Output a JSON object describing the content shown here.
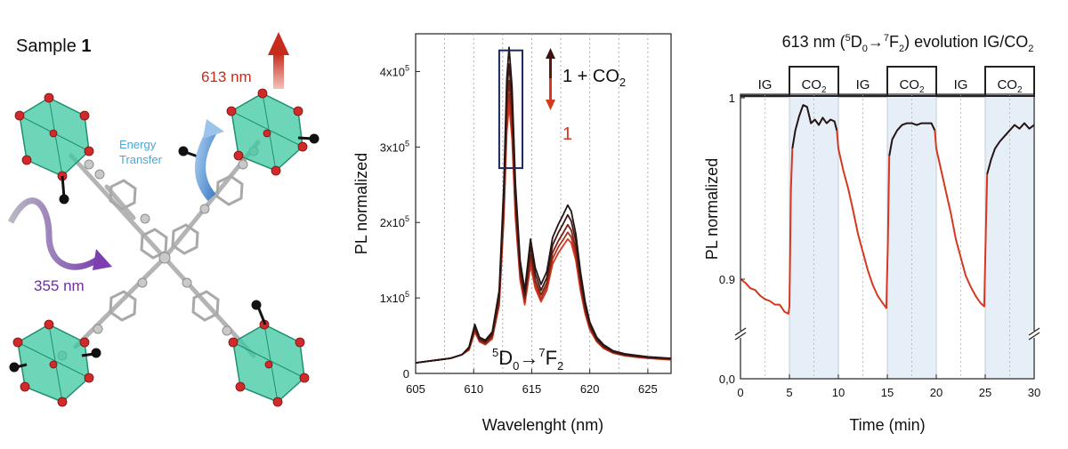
{
  "left_panel": {
    "sample_label": "Sample ",
    "sample_number": "1",
    "emission_label": "613 nm",
    "excitation_label": "355 nm",
    "energy_transfer_line1": "Energy",
    "energy_transfer_line2": "Transfer"
  },
  "chart_data": [
    {
      "type": "line",
      "title": "",
      "xlabel": "Wavelenght (nm)",
      "ylabel": "PL normalized",
      "xlim": [
        605,
        627
      ],
      "ylim": [
        0,
        450000
      ],
      "xticks": [
        605,
        610,
        615,
        620,
        625
      ],
      "yticks": [
        {
          "value": 0,
          "label": "0"
        },
        {
          "value": 100000,
          "label": "1x10",
          "exp": "5"
        },
        {
          "value": 200000,
          "label": "2x10",
          "exp": "5"
        },
        {
          "value": 300000,
          "label": "3x10",
          "exp": "5"
        },
        {
          "value": 400000,
          "label": "4x10",
          "exp": "5"
        }
      ],
      "grid_x": [
        607.5,
        610,
        612.5,
        615,
        617.5,
        620,
        622.5,
        625
      ],
      "legend": {
        "top_label": "1 + CO",
        "top_sub": "2",
        "bottom_label": "1"
      },
      "transition_label": {
        "main": "D",
        "pre_sup": "5",
        "sub1": "0",
        "arrow": "→",
        "sup2": "7",
        "main2": "F",
        "sub2": "2"
      },
      "highlight_box": {
        "x": [
          612.2,
          614.2
        ],
        "y": [
          272000,
          428000
        ]
      },
      "colors": {
        "red": "#d5381f",
        "dark": "#241414",
        "box": "#1b2a5a"
      },
      "series": [
        {
          "color": "#241414",
          "peak_scale": 1.0,
          "x": [
            605,
            606,
            607,
            608,
            609,
            609.6,
            610.1,
            610.5,
            611,
            611.6,
            612.2,
            612.6,
            612.85,
            613.05,
            613.3,
            613.6,
            614.0,
            614.4,
            614.9,
            615.3,
            615.8,
            616.3,
            616.8,
            617.3,
            617.7,
            618.1,
            618.4,
            618.8,
            619.2,
            619.6,
            620,
            620.6,
            621.2,
            622,
            623,
            624,
            625,
            626,
            627
          ],
          "y": [
            14000,
            16000,
            18000,
            20000,
            25000,
            35000,
            65000,
            48000,
            44000,
            55000,
            110000,
            250000,
            390000,
            432000,
            380000,
            250000,
            150000,
            110000,
            178000,
            140000,
            118000,
            135000,
            180000,
            198000,
            210000,
            223000,
            215000,
            185000,
            135000,
            95000,
            68000,
            48000,
            38000,
            30000,
            26000,
            24000,
            22000,
            21000,
            20000
          ]
        },
        {
          "color": "#3f1a14",
          "peak_scale": 0.95,
          "x": [
            605,
            606,
            607,
            608,
            609,
            609.6,
            610.1,
            610.5,
            611,
            611.6,
            612.2,
            612.6,
            612.85,
            613.05,
            613.3,
            613.6,
            614.0,
            614.4,
            614.9,
            615.3,
            615.8,
            616.3,
            616.8,
            617.3,
            617.7,
            618.1,
            618.4,
            618.8,
            619.2,
            619.6,
            620,
            620.6,
            621.2,
            622,
            623,
            624,
            625,
            626,
            627
          ],
          "y": [
            14000,
            16000,
            18000,
            20000,
            25000,
            34000,
            62000,
            46000,
            42000,
            52000,
            104000,
            237000,
            370000,
            410000,
            360000,
            237000,
            142000,
            104000,
            168000,
            132000,
            110000,
            127000,
            170000,
            187000,
            198000,
            210000,
            202000,
            175000,
            128000,
            90000,
            65000,
            46000,
            36000,
            29000,
            25000,
            23000,
            21500,
            20500,
            19500
          ]
        },
        {
          "color": "#7d2217",
          "peak_scale": 0.9,
          "x": [
            605,
            606,
            607,
            608,
            609,
            609.6,
            610.1,
            610.5,
            611,
            611.6,
            612.2,
            612.6,
            612.85,
            613.05,
            613.3,
            613.6,
            614.0,
            614.4,
            614.9,
            615.3,
            615.8,
            616.3,
            616.8,
            617.3,
            617.7,
            618.1,
            618.4,
            618.8,
            619.2,
            619.6,
            620,
            620.6,
            621.2,
            622,
            623,
            624,
            625,
            626,
            627
          ],
          "y": [
            14000,
            16000,
            18000,
            20000,
            25000,
            33000,
            59000,
            44000,
            40000,
            50000,
            98000,
            225000,
            350000,
            388000,
            340000,
            224000,
            135000,
            99000,
            158000,
            124000,
            104000,
            120000,
            160000,
            176000,
            186000,
            197000,
            190000,
            165000,
            120000,
            85000,
            62000,
            44000,
            35000,
            28000,
            24500,
            22500,
            21000,
            20000,
            19000
          ]
        },
        {
          "color": "#b42e1b",
          "peak_scale": 0.86,
          "x": [
            605,
            606,
            607,
            608,
            609,
            609.6,
            610.1,
            610.5,
            611,
            611.6,
            612.2,
            612.6,
            612.85,
            613.05,
            613.3,
            613.6,
            614.0,
            614.4,
            614.9,
            615.3,
            615.8,
            616.3,
            616.8,
            617.3,
            617.7,
            618.1,
            618.4,
            618.8,
            619.2,
            619.6,
            620,
            620.6,
            621.2,
            622,
            623,
            624,
            625,
            626,
            627
          ],
          "y": [
            14000,
            16000,
            18000,
            20000,
            25000,
            32000,
            57000,
            43000,
            39000,
            48000,
            94000,
            214000,
            335000,
            370000,
            325000,
            214000,
            129000,
            95000,
            150000,
            118000,
            99000,
            115000,
            152000,
            168000,
            177000,
            187000,
            181000,
            157000,
            115000,
            82000,
            60000,
            43000,
            34000,
            27500,
            24000,
            22000,
            20500,
            19500,
            18500
          ]
        },
        {
          "color": "#d5381f",
          "peak_scale": 0.82,
          "x": [
            605,
            606,
            607,
            608,
            609,
            609.6,
            610.1,
            610.5,
            611,
            611.6,
            612.2,
            612.6,
            612.85,
            613.05,
            613.3,
            613.6,
            614.0,
            614.4,
            614.9,
            615.3,
            615.8,
            616.3,
            616.8,
            617.3,
            617.7,
            618.1,
            618.4,
            618.8,
            619.2,
            619.6,
            620,
            620.6,
            621.2,
            622,
            623,
            624,
            625,
            626,
            627
          ],
          "y": [
            14000,
            16000,
            18000,
            20000,
            25000,
            31000,
            55000,
            42000,
            38000,
            46000,
            90000,
            205000,
            320000,
            355000,
            312000,
            205000,
            124000,
            91000,
            143000,
            113000,
            95000,
            110000,
            145000,
            160000,
            169000,
            178000,
            173000,
            150000,
            110000,
            79000,
            58000,
            42000,
            33000,
            27000,
            23500,
            21500,
            20000,
            19000,
            18000
          ]
        }
      ]
    },
    {
      "type": "line",
      "title": {
        "pre": "613 nm (",
        "sup1": "5",
        "main1": "D",
        "sub1": "0",
        "arrow": "→",
        "sup2": "7",
        "main2": "F",
        "sub2": "2",
        "post": ") evolution IG/CO",
        "sub3": "2"
      },
      "xlabel": "Time (min)",
      "ylabel": "PL normalized",
      "xlim": [
        0,
        30
      ],
      "xticks": [
        0,
        5,
        10,
        15,
        20,
        25,
        30
      ],
      "yticks_upper": [
        {
          "value": 0.9,
          "label": "0.9"
        },
        {
          "value": 1.0,
          "label": "1"
        }
      ],
      "yticks_lower": [
        {
          "value": 0,
          "label": "0,0"
        }
      ],
      "ylim_upper": [
        0.875,
        1.0
      ],
      "grid_x": [
        2.5,
        7.5,
        12.5,
        17.5,
        22.5,
        27.5
      ],
      "gas_segments": [
        {
          "label": "IG",
          "start": 0,
          "end": 5,
          "gas": "IG"
        },
        {
          "label": "CO",
          "sub": "2",
          "start": 5,
          "end": 10,
          "gas": "CO2"
        },
        {
          "label": "IG",
          "start": 10,
          "end": 15,
          "gas": "IG"
        },
        {
          "label": "CO",
          "sub": "2",
          "start": 15,
          "end": 20,
          "gas": "CO2"
        },
        {
          "label": "IG",
          "start": 20,
          "end": 25,
          "gas": "IG"
        },
        {
          "label": "CO",
          "sub": "2",
          "start": 25,
          "end": 30,
          "gas": "CO2"
        }
      ],
      "colors": {
        "red": "#d5381f",
        "dark": "#241414",
        "co2_fill": "#e6eef8",
        "co2_edge": "#c3cdd8"
      },
      "series": [
        {
          "gas": "IG",
          "color": "#d5381f",
          "x": [
            0,
            0.5,
            1.0,
            1.5,
            2.0,
            2.5,
            3.0,
            3.5,
            4.0,
            4.5,
            4.9,
            5.0,
            5.15,
            5.3
          ],
          "y": [
            0.9,
            0.898,
            0.895,
            0.894,
            0.891,
            0.889,
            0.888,
            0.886,
            0.886,
            0.882,
            0.881,
            0.885,
            0.95,
            0.972
          ]
        },
        {
          "gas": "CO2",
          "color": "#241414",
          "x": [
            5.3,
            5.6,
            6.0,
            6.4,
            6.8,
            7.2,
            7.6,
            8.0,
            8.4,
            8.8,
            9.2,
            9.6,
            9.85
          ],
          "y": [
            0.972,
            0.982,
            0.99,
            0.996,
            0.995,
            0.986,
            0.988,
            0.985,
            0.989,
            0.986,
            0.988,
            0.987,
            0.982
          ]
        },
        {
          "gas": "IG",
          "color": "#d5381f",
          "x": [
            9.85,
            10.0,
            10.5,
            11,
            11.5,
            12,
            12.5,
            13,
            13.5,
            14,
            14.5,
            14.9,
            15.05,
            15.2
          ],
          "y": [
            0.982,
            0.972,
            0.96,
            0.95,
            0.938,
            0.925,
            0.915,
            0.905,
            0.897,
            0.891,
            0.887,
            0.884,
            0.92,
            0.968
          ]
        },
        {
          "gas": "CO2",
          "color": "#241414",
          "x": [
            15.2,
            15.5,
            16,
            16.5,
            17,
            17.5,
            18,
            18.5,
            19,
            19.5,
            19.85
          ],
          "y": [
            0.968,
            0.977,
            0.982,
            0.985,
            0.986,
            0.986,
            0.985,
            0.986,
            0.986,
            0.986,
            0.982
          ]
        },
        {
          "gas": "IG",
          "color": "#d5381f",
          "x": [
            19.85,
            20.0,
            20.5,
            21,
            21.5,
            22,
            22.5,
            23,
            23.5,
            24,
            24.5,
            24.9,
            25.05,
            25.2
          ],
          "y": [
            0.982,
            0.972,
            0.96,
            0.948,
            0.936,
            0.922,
            0.912,
            0.902,
            0.896,
            0.891,
            0.887,
            0.885,
            0.925,
            0.958
          ]
        },
        {
          "gas": "CO2",
          "color": "#241414",
          "x": [
            25.2,
            25.6,
            26,
            26.5,
            27,
            27.5,
            28,
            28.5,
            29,
            29.5,
            30
          ],
          "y": [
            0.958,
            0.966,
            0.972,
            0.976,
            0.979,
            0.982,
            0.985,
            0.983,
            0.986,
            0.983,
            0.985
          ]
        }
      ]
    }
  ]
}
